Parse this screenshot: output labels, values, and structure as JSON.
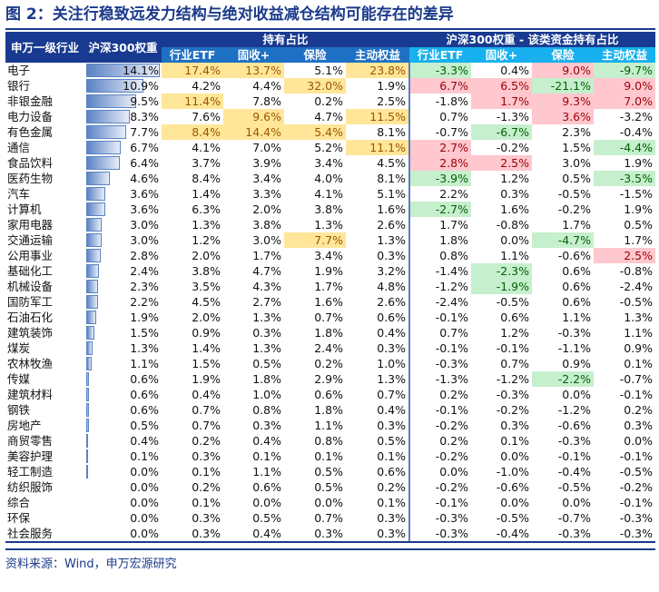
{
  "title": "图 2：关注行稳致远发力结构与绝对收益减仓结构可能存在的差异",
  "header": {
    "industry": "申万一级行业",
    "weight": "沪深300权重",
    "group_hold": "持有占比",
    "group_diff": "沪深300权重 - 该类资金持有占比",
    "cols": [
      "行业ETF",
      "固收+",
      "保险",
      "主动权益"
    ]
  },
  "highlight_colors": {
    "y": "#ffe699",
    "r": "#ffc7ce",
    "g": "#c6efce"
  },
  "rows": [
    {
      "name": "电子",
      "weight": "14.1%",
      "w": 14.1,
      "hold": [
        "17.4%",
        "13.7%",
        "5.1%",
        "23.8%"
      ],
      "diff": [
        "-3.3%",
        "0.4%",
        "9.0%",
        "-9.7%"
      ],
      "hl": [
        "y",
        "y",
        "",
        "y",
        "g",
        "",
        "r",
        "g"
      ]
    },
    {
      "name": "银行",
      "weight": "10.9%",
      "w": 10.9,
      "hold": [
        "4.2%",
        "4.4%",
        "32.0%",
        "1.9%"
      ],
      "diff": [
        "6.7%",
        "6.5%",
        "-21.1%",
        "9.0%"
      ],
      "hl": [
        "",
        "",
        "y",
        "",
        "r",
        "r",
        "g",
        "r"
      ]
    },
    {
      "name": "非银金融",
      "weight": "9.5%",
      "w": 9.5,
      "hold": [
        "11.4%",
        "7.8%",
        "0.2%",
        "2.5%"
      ],
      "diff": [
        "-1.8%",
        "1.7%",
        "9.3%",
        "7.0%"
      ],
      "hl": [
        "y",
        "",
        "",
        "",
        "",
        "r",
        "r",
        "r"
      ]
    },
    {
      "name": "电力设备",
      "weight": "8.3%",
      "w": 8.3,
      "hold": [
        "7.6%",
        "9.6%",
        "4.7%",
        "11.5%"
      ],
      "diff": [
        "0.7%",
        "-1.3%",
        "3.6%",
        "-3.2%"
      ],
      "hl": [
        "",
        "y",
        "",
        "y",
        "",
        "",
        "r",
        ""
      ]
    },
    {
      "name": "有色金属",
      "weight": "7.7%",
      "w": 7.7,
      "hold": [
        "8.4%",
        "14.4%",
        "5.4%",
        "8.1%"
      ],
      "diff": [
        "-0.7%",
        "-6.7%",
        "2.3%",
        "-0.4%"
      ],
      "hl": [
        "y",
        "y",
        "y",
        "",
        "",
        "g",
        "",
        ""
      ]
    },
    {
      "name": "通信",
      "weight": "6.7%",
      "w": 6.7,
      "hold": [
        "4.1%",
        "7.0%",
        "5.2%",
        "11.1%"
      ],
      "diff": [
        "2.7%",
        "-0.2%",
        "1.5%",
        "-4.4%"
      ],
      "hl": [
        "",
        "",
        "",
        "y",
        "r",
        "",
        "",
        "g"
      ]
    },
    {
      "name": "食品饮料",
      "weight": "6.4%",
      "w": 6.4,
      "hold": [
        "3.7%",
        "3.9%",
        "3.4%",
        "4.5%"
      ],
      "diff": [
        "2.8%",
        "2.5%",
        "3.0%",
        "1.9%"
      ],
      "hl": [
        "",
        "",
        "",
        "",
        "r",
        "r",
        "",
        ""
      ]
    },
    {
      "name": "医药生物",
      "weight": "4.6%",
      "w": 4.6,
      "hold": [
        "8.4%",
        "3.4%",
        "4.0%",
        "8.1%"
      ],
      "diff": [
        "-3.9%",
        "1.2%",
        "0.5%",
        "-3.5%"
      ],
      "hl": [
        "",
        "",
        "",
        "",
        "g",
        "",
        "",
        "g"
      ]
    },
    {
      "name": "汽车",
      "weight": "3.6%",
      "w": 3.6,
      "hold": [
        "1.4%",
        "3.3%",
        "4.1%",
        "5.1%"
      ],
      "diff": [
        "2.2%",
        "0.3%",
        "-0.5%",
        "-1.5%"
      ],
      "hl": [
        "",
        "",
        "",
        "",
        "",
        "",
        "",
        ""
      ]
    },
    {
      "name": "计算机",
      "weight": "3.6%",
      "w": 3.6,
      "hold": [
        "6.3%",
        "2.0%",
        "3.8%",
        "1.6%"
      ],
      "diff": [
        "-2.7%",
        "1.6%",
        "-0.2%",
        "1.9%"
      ],
      "hl": [
        "",
        "",
        "",
        "",
        "g",
        "",
        "",
        ""
      ]
    },
    {
      "name": "家用电器",
      "weight": "3.0%",
      "w": 3.0,
      "hold": [
        "1.3%",
        "3.8%",
        "1.3%",
        "2.6%"
      ],
      "diff": [
        "1.7%",
        "-0.8%",
        "1.7%",
        "0.5%"
      ],
      "hl": [
        "",
        "",
        "",
        "",
        "",
        "",
        "",
        ""
      ]
    },
    {
      "name": "交通运输",
      "weight": "3.0%",
      "w": 3.0,
      "hold": [
        "1.2%",
        "3.0%",
        "7.7%",
        "1.3%"
      ],
      "diff": [
        "1.8%",
        "0.0%",
        "-4.7%",
        "1.7%"
      ],
      "hl": [
        "",
        "",
        "y",
        "",
        "",
        "",
        "g",
        ""
      ]
    },
    {
      "name": "公用事业",
      "weight": "2.8%",
      "w": 2.8,
      "hold": [
        "2.0%",
        "1.7%",
        "3.4%",
        "0.3%"
      ],
      "diff": [
        "0.8%",
        "1.1%",
        "-0.6%",
        "2.5%"
      ],
      "hl": [
        "",
        "",
        "",
        "",
        "",
        "",
        "",
        "r"
      ]
    },
    {
      "name": "基础化工",
      "weight": "2.4%",
      "w": 2.4,
      "hold": [
        "3.8%",
        "4.7%",
        "1.9%",
        "3.2%"
      ],
      "diff": [
        "-1.4%",
        "-2.3%",
        "0.6%",
        "-0.8%"
      ],
      "hl": [
        "",
        "",
        "",
        "",
        "",
        "g",
        "",
        ""
      ]
    },
    {
      "name": "机械设备",
      "weight": "2.3%",
      "w": 2.3,
      "hold": [
        "3.5%",
        "4.3%",
        "1.7%",
        "4.8%"
      ],
      "diff": [
        "-1.2%",
        "-1.9%",
        "0.6%",
        "-2.4%"
      ],
      "hl": [
        "",
        "",
        "",
        "",
        "",
        "g",
        "",
        ""
      ]
    },
    {
      "name": "国防军工",
      "weight": "2.2%",
      "w": 2.2,
      "hold": [
        "4.5%",
        "2.7%",
        "1.6%",
        "2.6%"
      ],
      "diff": [
        "-2.4%",
        "-0.5%",
        "0.6%",
        "-0.5%"
      ],
      "hl": [
        "",
        "",
        "",
        "",
        "",
        "",
        "",
        ""
      ]
    },
    {
      "name": "石油石化",
      "weight": "1.9%",
      "w": 1.9,
      "hold": [
        "2.0%",
        "1.3%",
        "0.7%",
        "0.6%"
      ],
      "diff": [
        "-0.1%",
        "0.6%",
        "1.1%",
        "1.3%"
      ],
      "hl": [
        "",
        "",
        "",
        "",
        "",
        "",
        "",
        ""
      ]
    },
    {
      "name": "建筑装饰",
      "weight": "1.5%",
      "w": 1.5,
      "hold": [
        "0.9%",
        "0.3%",
        "1.8%",
        "0.4%"
      ],
      "diff": [
        "0.7%",
        "1.2%",
        "-0.3%",
        "1.1%"
      ],
      "hl": [
        "",
        "",
        "",
        "",
        "",
        "",
        "",
        ""
      ]
    },
    {
      "name": "煤炭",
      "weight": "1.3%",
      "w": 1.3,
      "hold": [
        "1.4%",
        "1.3%",
        "2.4%",
        "0.3%"
      ],
      "diff": [
        "-0.1%",
        "-0.1%",
        "-1.1%",
        "0.9%"
      ],
      "hl": [
        "",
        "",
        "",
        "",
        "",
        "",
        "",
        ""
      ]
    },
    {
      "name": "农林牧渔",
      "weight": "1.1%",
      "w": 1.1,
      "hold": [
        "1.5%",
        "0.5%",
        "0.2%",
        "1.0%"
      ],
      "diff": [
        "-0.3%",
        "0.7%",
        "0.9%",
        "0.1%"
      ],
      "hl": [
        "",
        "",
        "",
        "",
        "",
        "",
        "",
        ""
      ]
    },
    {
      "name": "传媒",
      "weight": "0.6%",
      "w": 0.6,
      "hold": [
        "1.9%",
        "1.8%",
        "2.9%",
        "1.3%"
      ],
      "diff": [
        "-1.3%",
        "-1.2%",
        "-2.2%",
        "-0.7%"
      ],
      "hl": [
        "",
        "",
        "",
        "",
        "",
        "",
        "g",
        ""
      ]
    },
    {
      "name": "建筑材料",
      "weight": "0.6%",
      "w": 0.6,
      "hold": [
        "0.4%",
        "1.0%",
        "0.6%",
        "0.7%"
      ],
      "diff": [
        "0.2%",
        "-0.3%",
        "0.0%",
        "-0.1%"
      ],
      "hl": [
        "",
        "",
        "",
        "",
        "",
        "",
        "",
        ""
      ]
    },
    {
      "name": "钢铁",
      "weight": "0.6%",
      "w": 0.6,
      "hold": [
        "0.7%",
        "0.8%",
        "1.8%",
        "0.4%"
      ],
      "diff": [
        "-0.1%",
        "-0.2%",
        "-1.2%",
        "0.2%"
      ],
      "hl": [
        "",
        "",
        "",
        "",
        "",
        "",
        "",
        ""
      ]
    },
    {
      "name": "房地产",
      "weight": "0.5%",
      "w": 0.5,
      "hold": [
        "0.7%",
        "0.3%",
        "1.1%",
        "0.3%"
      ],
      "diff": [
        "-0.2%",
        "0.3%",
        "-0.6%",
        "0.3%"
      ],
      "hl": [
        "",
        "",
        "",
        "",
        "",
        "",
        "",
        ""
      ]
    },
    {
      "name": "商贸零售",
      "weight": "0.4%",
      "w": 0.4,
      "hold": [
        "0.2%",
        "0.4%",
        "0.8%",
        "0.5%"
      ],
      "diff": [
        "0.2%",
        "0.1%",
        "-0.3%",
        "0.0%"
      ],
      "hl": [
        "",
        "",
        "",
        "",
        "",
        "",
        "",
        ""
      ]
    },
    {
      "name": "美容护理",
      "weight": "0.1%",
      "w": 0.1,
      "hold": [
        "0.3%",
        "0.1%",
        "0.1%",
        "0.1%"
      ],
      "diff": [
        "-0.2%",
        "0.0%",
        "-0.1%",
        "-0.1%"
      ],
      "hl": [
        "",
        "",
        "",
        "",
        "",
        "",
        "",
        ""
      ]
    },
    {
      "name": "轻工制造",
      "weight": "0.0%",
      "w": 0.04,
      "hold": [
        "0.1%",
        "1.1%",
        "0.5%",
        "0.6%"
      ],
      "diff": [
        "0.0%",
        "-1.0%",
        "-0.4%",
        "-0.5%"
      ],
      "hl": [
        "",
        "",
        "",
        "",
        "",
        "",
        "",
        ""
      ]
    },
    {
      "name": "纺织服饰",
      "weight": "0.0%",
      "w": 0,
      "hold": [
        "0.2%",
        "0.6%",
        "0.5%",
        "0.2%"
      ],
      "diff": [
        "-0.2%",
        "-0.6%",
        "-0.5%",
        "-0.2%"
      ],
      "hl": [
        "",
        "",
        "",
        "",
        "",
        "",
        "",
        ""
      ]
    },
    {
      "name": "综合",
      "weight": "0.0%",
      "w": 0,
      "hold": [
        "0.1%",
        "0.0%",
        "0.0%",
        "0.1%"
      ],
      "diff": [
        "-0.1%",
        "0.0%",
        "0.0%",
        "-0.1%"
      ],
      "hl": [
        "",
        "",
        "",
        "",
        "",
        "",
        "",
        ""
      ]
    },
    {
      "name": "环保",
      "weight": "0.0%",
      "w": 0,
      "hold": [
        "0.3%",
        "0.5%",
        "0.7%",
        "0.3%"
      ],
      "diff": [
        "-0.3%",
        "-0.5%",
        "-0.7%",
        "-0.3%"
      ],
      "hl": [
        "",
        "",
        "",
        "",
        "",
        "",
        "",
        ""
      ]
    },
    {
      "name": "社会服务",
      "weight": "0.0%",
      "w": 0,
      "hold": [
        "0.3%",
        "0.4%",
        "0.3%",
        "0.3%"
      ],
      "diff": [
        "-0.3%",
        "-0.4%",
        "-0.3%",
        "-0.3%"
      ],
      "hl": [
        "",
        "",
        "",
        "",
        "",
        "",
        "",
        ""
      ]
    }
  ],
  "source": "资料来源：Wind，申万宏源研究"
}
